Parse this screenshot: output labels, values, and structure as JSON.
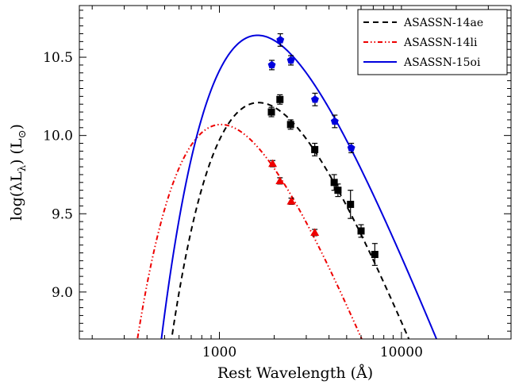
{
  "chart_data": {
    "type": "line",
    "x_scale": "log",
    "xlabel": "Rest Wavelength (Å)",
    "ylabel": "log(λL",
    "ylabel_sub": "λ",
    "ylabel_unit": ") (L",
    "ylabel_unit_sub": "⊙",
    "ylabel_end": ")",
    "xlim": [
      170,
      40000
    ],
    "ylim": [
      8.7,
      10.83
    ],
    "x_ticks": [
      {
        "value": 1000,
        "label": "1000"
      },
      {
        "value": 10000,
        "label": "10000"
      }
    ],
    "y_ticks": [
      {
        "value": 9.0,
        "label": "9.0"
      },
      {
        "value": 9.5,
        "label": "9.5"
      },
      {
        "value": 10.0,
        "label": "10.0"
      },
      {
        "value": 10.5,
        "label": "10.5"
      }
    ],
    "legend_position": "top-right",
    "series": [
      {
        "name": "ASASSN-14ae",
        "color": "#000000",
        "line_style": "dashed",
        "marker": "square",
        "curve_peak_wavelength": 1640,
        "curve_peak_value": 10.21,
        "points": [
          {
            "x": 1930,
            "y": 10.15,
            "err": 0.03
          },
          {
            "x": 2150,
            "y": 10.23,
            "err": 0.03
          },
          {
            "x": 2460,
            "y": 10.07,
            "err": 0.03
          },
          {
            "x": 3340,
            "y": 9.91,
            "err": 0.04
          },
          {
            "x": 4270,
            "y": 9.7,
            "err": 0.05
          },
          {
            "x": 4480,
            "y": 9.65,
            "err": 0.04
          },
          {
            "x": 5250,
            "y": 9.56,
            "err": 0.09
          },
          {
            "x": 6000,
            "y": 9.39,
            "err": 0.04
          },
          {
            "x": 7140,
            "y": 9.24,
            "err": 0.07
          }
        ]
      },
      {
        "name": "ASASSN-14li",
        "color": "#ee0000",
        "line_style": "dash-dot-dot",
        "marker": "triangle",
        "curve_peak_wavelength": 1020,
        "curve_peak_value": 10.07,
        "points": [
          {
            "x": 1960,
            "y": 9.82,
            "err": 0.02
          },
          {
            "x": 2150,
            "y": 9.71,
            "err": 0.02
          },
          {
            "x": 2480,
            "y": 9.58,
            "err": 0.02
          },
          {
            "x": 3340,
            "y": 9.38,
            "err": 0.02
          }
        ]
      },
      {
        "name": "ASASSN-15oi",
        "color": "#0000dd",
        "line_style": "solid",
        "marker": "pentagon",
        "curve_peak_wavelength": 1620,
        "curve_peak_value": 10.64,
        "points": [
          {
            "x": 1940,
            "y": 10.45,
            "err": 0.03
          },
          {
            "x": 2160,
            "y": 10.61,
            "err": 0.04
          },
          {
            "x": 2470,
            "y": 10.48,
            "err": 0.03
          },
          {
            "x": 3350,
            "y": 10.23,
            "err": 0.04
          },
          {
            "x": 4300,
            "y": 10.09,
            "err": 0.04
          },
          {
            "x": 5300,
            "y": 9.92,
            "err": 0.03
          }
        ]
      }
    ]
  }
}
